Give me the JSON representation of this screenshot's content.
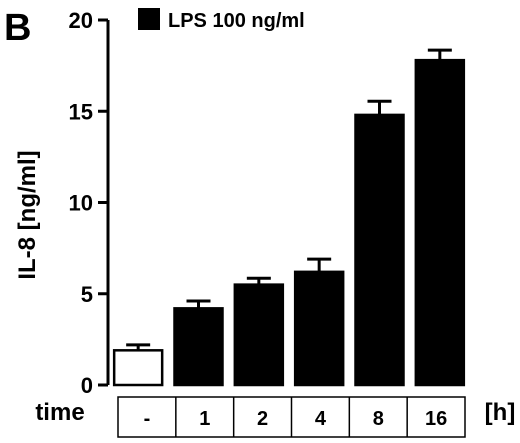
{
  "panel_label": "B",
  "chart_data": {
    "type": "bar",
    "categories": [
      "-",
      "1",
      "2",
      "4",
      "8",
      "16"
    ],
    "series": [
      {
        "name": "LPS 100 ng/ml",
        "values": [
          1.9,
          4.2,
          5.5,
          6.2,
          14.8,
          17.8
        ],
        "errors": [
          0.3,
          0.4,
          0.35,
          0.7,
          0.75,
          0.55
        ],
        "fills": [
          "#ffffff",
          "#000000",
          "#000000",
          "#000000",
          "#000000",
          "#000000"
        ]
      }
    ],
    "ylabel": "IL-8 [ng/ml]",
    "xlabel": "time",
    "x_unit": "[h]",
    "ylim": [
      0,
      20
    ],
    "yticks": [
      0,
      5,
      10,
      15,
      20
    ],
    "legend_position": "top-left",
    "grid": false
  }
}
